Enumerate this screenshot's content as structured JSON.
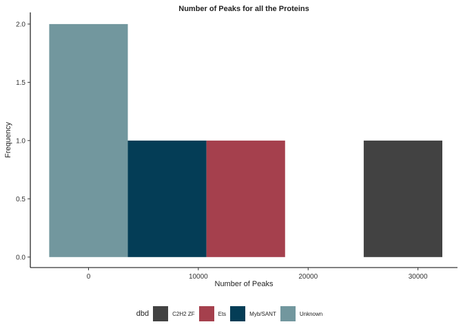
{
  "chart_data": {
    "type": "bar",
    "title": "Number of Peaks for all the Proteins",
    "xlabel": "Number of Peaks",
    "ylabel": "Frequency",
    "x_ticks": [
      0,
      10000,
      20000,
      30000
    ],
    "y_ticks": [
      "0.0",
      "0.5",
      "1.0",
      "1.5",
      "2.0"
    ],
    "xlim": [
      -5300,
      33600
    ],
    "ylim": [
      -0.09,
      2.1
    ],
    "bins": [
      {
        "x_start": -3580,
        "x_end": 3580,
        "value": 2,
        "series": "Unknown"
      },
      {
        "x_start": 3580,
        "x_end": 10740,
        "value": 1,
        "series": "Myb/SANT"
      },
      {
        "x_start": 10740,
        "x_end": 17900,
        "value": 1,
        "series": "Ets"
      },
      {
        "x_start": 25060,
        "x_end": 32220,
        "value": 1,
        "series": "C2H2 ZF"
      }
    ],
    "legend": {
      "title": "dbd",
      "position": "bottom",
      "items": [
        {
          "name": "C2H2 ZF",
          "color": "#424242"
        },
        {
          "name": "Ets",
          "color": "#a5404d"
        },
        {
          "name": "Myb/SANT",
          "color": "#043d56"
        },
        {
          "name": "Unknown",
          "color": "#72979e"
        }
      ]
    },
    "grid": false
  }
}
